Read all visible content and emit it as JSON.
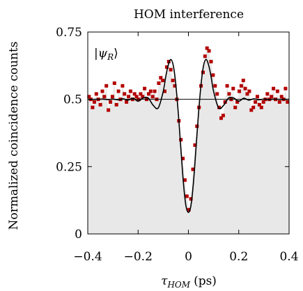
{
  "chart_data": {
    "type": "scatter",
    "title": "HOM interference",
    "xlabel": "τ_HOM (ps)",
    "xlabel_main": "τ",
    "xlabel_sub": "HOM",
    "xlabel_unit": "(ps)",
    "ylabel": "Normalized coincidence counts",
    "annotation": "|ψR⟩",
    "annotation_main": "|ψ",
    "annotation_sub": "R",
    "annotation_close": "⟩",
    "xlim": [
      -0.4,
      0.4
    ],
    "ylim": [
      0,
      0.75
    ],
    "xticks": [
      -0.4,
      -0.2,
      0,
      0.2,
      0.4
    ],
    "xtick_labels": [
      "−0.4",
      "−0.2",
      "0",
      "0.2",
      "0.4"
    ],
    "yticks": [
      0,
      0.25,
      0.5,
      0.75
    ],
    "ytick_labels": [
      "0",
      "0.25",
      "0.5",
      "0.75"
    ],
    "grid": false,
    "colors": {
      "points": "#b30000",
      "fit": "#000000",
      "background_fill": "#e8e8e8"
    },
    "series": [
      {
        "kind": "points",
        "x": [
          -0.395,
          -0.388,
          -0.381,
          -0.374,
          -0.366,
          -0.358,
          -0.35,
          -0.342,
          -0.334,
          -0.326,
          -0.318,
          -0.31,
          -0.302,
          -0.294,
          -0.286,
          -0.278,
          -0.27,
          -0.262,
          -0.254,
          -0.246,
          -0.238,
          -0.23,
          -0.222,
          -0.214,
          -0.206,
          -0.198,
          -0.19,
          -0.182,
          -0.174,
          -0.166,
          -0.158,
          -0.15,
          -0.142,
          -0.134,
          -0.126,
          -0.118,
          -0.11,
          -0.102,
          -0.094,
          -0.086,
          -0.078,
          -0.07,
          -0.062,
          -0.054,
          -0.046,
          -0.038,
          -0.03,
          -0.022,
          -0.014,
          -0.006,
          0.002,
          0.01,
          0.018,
          0.026,
          0.034,
          0.042,
          0.05,
          0.058,
          0.066,
          0.074,
          0.082,
          0.09,
          0.098,
          0.106,
          0.114,
          0.122,
          0.13,
          0.138,
          0.146,
          0.154,
          0.162,
          0.17,
          0.178,
          0.186,
          0.194,
          0.202,
          0.21,
          0.218,
          0.226,
          0.234,
          0.242,
          0.25,
          0.258,
          0.266,
          0.274,
          0.282,
          0.29,
          0.298,
          0.306,
          0.314,
          0.322,
          0.33,
          0.338,
          0.346,
          0.354,
          0.362,
          0.37,
          0.378,
          0.386,
          0.394
        ],
        "y": [
          0.51,
          0.5,
          0.47,
          0.49,
          0.52,
          0.5,
          0.48,
          0.53,
          0.51,
          0.55,
          0.46,
          0.49,
          0.51,
          0.56,
          0.48,
          0.53,
          0.5,
          0.55,
          0.52,
          0.49,
          0.51,
          0.53,
          0.5,
          0.52,
          0.51,
          0.5,
          0.52,
          0.51,
          0.54,
          0.5,
          0.52,
          0.53,
          0.51,
          0.53,
          0.5,
          0.56,
          0.58,
          0.57,
          0.53,
          0.62,
          0.64,
          0.61,
          0.57,
          0.55,
          0.5,
          0.42,
          0.35,
          0.28,
          0.2,
          0.14,
          0.09,
          0.13,
          0.24,
          0.33,
          0.4,
          0.47,
          0.55,
          0.6,
          0.66,
          0.69,
          0.68,
          0.64,
          0.59,
          0.55,
          0.52,
          0.47,
          0.43,
          0.44,
          0.49,
          0.55,
          0.52,
          0.5,
          0.54,
          0.47,
          0.49,
          0.53,
          0.55,
          0.57,
          0.54,
          0.52,
          0.53,
          0.46,
          0.47,
          0.49,
          0.51,
          0.48,
          0.47,
          0.49,
          0.5,
          0.52,
          0.5,
          0.51,
          0.54,
          0.5,
          0.53,
          0.49,
          0.51,
          0.5,
          0.54,
          0.49
        ]
      },
      {
        "kind": "fit",
        "x": [
          -0.4,
          -0.38,
          -0.36,
          -0.34,
          -0.32,
          -0.3,
          -0.28,
          -0.26,
          -0.24,
          -0.22,
          -0.2,
          -0.18,
          -0.16,
          -0.14,
          -0.12,
          -0.1,
          -0.09,
          -0.08,
          -0.07,
          -0.06,
          -0.05,
          -0.04,
          -0.03,
          -0.02,
          -0.01,
          0.0,
          0.01,
          0.02,
          0.03,
          0.04,
          0.05,
          0.06,
          0.07,
          0.08,
          0.09,
          0.1,
          0.12,
          0.14,
          0.16,
          0.18,
          0.2,
          0.22,
          0.24,
          0.26,
          0.28,
          0.3,
          0.32,
          0.34,
          0.36,
          0.38,
          0.4
        ],
        "y": [
          0.5,
          0.5,
          0.5,
          0.501,
          0.499,
          0.501,
          0.498,
          0.502,
          0.497,
          0.504,
          0.493,
          0.505,
          0.505,
          0.478,
          0.468,
          0.53,
          0.585,
          0.628,
          0.648,
          0.625,
          0.555,
          0.445,
          0.315,
          0.19,
          0.105,
          0.08,
          0.105,
          0.19,
          0.315,
          0.445,
          0.555,
          0.625,
          0.648,
          0.628,
          0.585,
          0.53,
          0.468,
          0.478,
          0.505,
          0.505,
          0.493,
          0.504,
          0.497,
          0.502,
          0.498,
          0.501,
          0.499,
          0.501,
          0.5,
          0.5,
          0.5
        ]
      }
    ]
  }
}
